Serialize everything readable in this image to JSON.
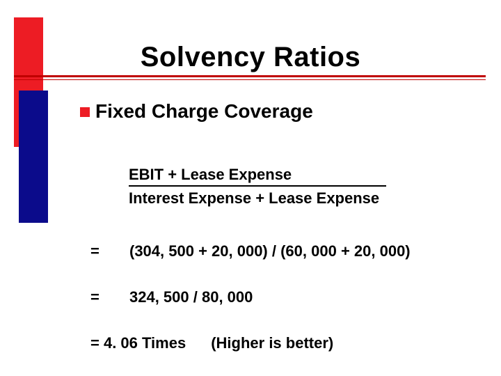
{
  "title": "Solvency Ratios",
  "subtitle": "Fixed Charge Coverage",
  "fraction": {
    "numerator": "EBIT + Lease Expense",
    "denominator": "Interest Expense + Lease Expense"
  },
  "rows": {
    "r1": {
      "eq": "=",
      "expr": "(304, 500 + 20, 000) / (60, 000 + 20, 000)"
    },
    "r2": {
      "eq": "=",
      "expr": "324, 500 / 80, 000"
    },
    "r3": {
      "result": "= 4. 06 Times",
      "note": "(Higher is better)"
    }
  },
  "colors": {
    "red": "#ed1c24",
    "navy": "#0b0b8b",
    "rule": "#c00000",
    "text": "#000000",
    "background": "#ffffff"
  }
}
